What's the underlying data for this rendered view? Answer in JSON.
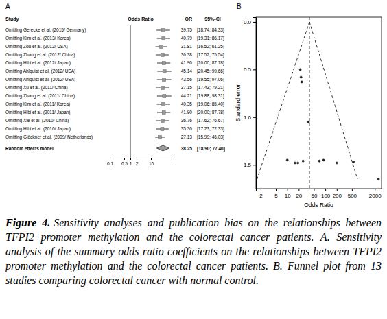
{
  "chart_data": [
    {
      "type": "forest",
      "title": "A",
      "columns": [
        "Study",
        "Odds Ratio",
        "OR",
        "95%-CI"
      ],
      "categories": [
        "Omitting Gerecke et al. (2015/ Germany)",
        "Omitting Kim et al. (2013/ Korea)",
        "Omitting Zou et al. (2012/ USA)",
        "Omitting Zhang et al. (2012/ China)",
        "Omitting Hibi et al. (2012/ Japan)",
        "Omitting Ahlquist et al. (2012/ USA)",
        "Omitting Ahlquist et al. (2012/ USA)",
        "Omitting Xu et al. (2011/ China)",
        "Omitting Zhang et al. (2011/ China)",
        "Omitting Kim et al. (2011/ Korea)",
        "Omitting Hibi et al. (2011/ Japan)",
        "Omitting Xie et al. (2010/ China)",
        "Omitting Hibi et al. (2010/ Japan)",
        "Omitting Glöckner et al. (2009/ Netherlands)"
      ],
      "values": [
        39.75,
        40.79,
        31.81,
        36.38,
        41.9,
        45.14,
        43.56,
        37.15,
        44.21,
        40.35,
        41.9,
        36.76,
        35.3,
        27.13
      ],
      "value_labels": [
        "39.75",
        "40.79",
        "31.81",
        "36.38",
        "41.90",
        "45.14",
        "43.56",
        "37.15",
        "44.21",
        "40.35",
        "41.90",
        "36.76",
        "35.30",
        "27.13"
      ],
      "lower": [
        18.74,
        19.31,
        16.52,
        17.52,
        20.0,
        20.45,
        19.55,
        17.43,
        19.88,
        19.06,
        20.0,
        17.62,
        17.23,
        15.99
      ],
      "upper": [
        84.33,
        86.17,
        61.25,
        75.54,
        87.78,
        99.66,
        97.06,
        79.21,
        98.31,
        85.4,
        87.78,
        76.67,
        72.33,
        46.03
      ],
      "ci_labels": [
        "[18.74; 84.33]",
        "[19.31; 86.17]",
        "[16.52; 61.25]",
        "[17.52; 75.54]",
        "[20.00; 87.78]",
        "[20.45; 99.66]",
        "[19.55; 97.06]",
        "[17.43; 79.21]",
        "[19.88; 98.31]",
        "[19.06; 85.40]",
        "[20.00; 87.78]",
        "[17.62; 76.67]",
        "[17.23; 72.33]",
        "[15.99; 46.03]"
      ],
      "summary": {
        "name": "Random effects model",
        "value": 38.25,
        "lower": 18.9,
        "upper": 77.4,
        "value_label": "38.25",
        "ci_label": "[18.90; 77.40]"
      },
      "reference": 1,
      "log": "x",
      "xlim": [
        0.1,
        100
      ],
      "xticks": [
        0.1,
        0.5,
        1,
        2,
        10
      ],
      "color": "#999999"
    },
    {
      "type": "scatter",
      "title": "B",
      "x_label": "Odds Ratio",
      "y_label": "Standard error",
      "log": "x",
      "x": [
        22,
        23,
        24,
        36,
        10,
        16,
        19,
        26,
        70,
        90,
        200,
        550,
        2500
      ],
      "values": [
        0.5,
        0.58,
        0.63,
        1.05,
        1.45,
        1.48,
        1.48,
        1.46,
        1.46,
        1.45,
        1.48,
        1.47,
        1.65
      ],
      "xlim": [
        1.5,
        3000
      ],
      "xticks": [
        2,
        5,
        10,
        20,
        50,
        100,
        200,
        500,
        2000
      ],
      "ylim": [
        1.75,
        -0.05
      ],
      "yticks": [
        {
          "value": 0,
          "label": "0.0"
        },
        0.5,
        {
          "value": 1,
          "label": "1.0"
        },
        1.5
      ],
      "funnel": {
        "center": 38.25,
        "left": {
          "x": [
            38.25,
            1.6
          ],
          "y": [
            0,
            1.65
          ]
        },
        "right": {
          "x": [
            38.25,
            700
          ],
          "y": [
            0,
            1.65
          ]
        }
      },
      "marker": "circle",
      "color": "#222222"
    }
  ],
  "caption": {
    "label": "Figure 4.",
    "text": "Sensitivity analyses and publication bias on the relationships between TFPI2 promoter methylation and the colorectal cancer patients. A. Sensitivity analysis of the summary odds ratio coefficients on the relationships between TFPI2 promoter methylation and the colorectal cancer patients. B. Funnel plot from 13 studies comparing colorectal cancer with normal control."
  }
}
